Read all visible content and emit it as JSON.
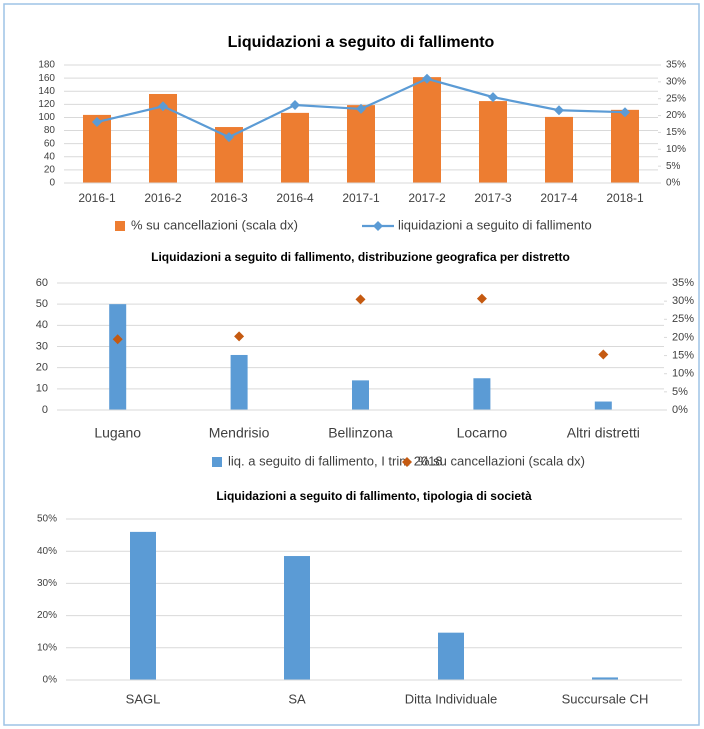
{
  "chart_data": [
    {
      "type": "combo",
      "title": "Liquidazioni a seguito di fallimento",
      "categories": [
        "2016-1",
        "2016-2",
        "2016-3",
        "2016-4",
        "2017-1",
        "2017-2",
        "2017-3",
        "2017-4",
        "2018-1"
      ],
      "series": [
        {
          "name": "% su cancellazioni (scala dx)",
          "kind": "bar",
          "axis": "y2",
          "color": "#ED7D31",
          "values": [
            20.2,
            26.4,
            16.6,
            20.8,
            23.1,
            31.4,
            24.3,
            19.6,
            21.7
          ]
        },
        {
          "name": "liquidazioni a seguito di fallimento",
          "kind": "line",
          "color": "#5B9BD5",
          "values": [
            93,
            117,
            70,
            119,
            113,
            159,
            131,
            111,
            108
          ]
        }
      ],
      "ylim": [
        0,
        180
      ],
      "yticks": [
        0,
        20,
        40,
        60,
        80,
        100,
        120,
        140,
        160,
        180
      ],
      "y2lim": [
        0,
        35
      ],
      "y2ticks": [
        {
          "value": 0,
          "label": "0%"
        },
        {
          "value": 5,
          "label": "5%"
        },
        {
          "value": 10,
          "label": "10%"
        },
        {
          "value": 15,
          "label": "15%"
        },
        {
          "value": 20,
          "label": "20%"
        },
        {
          "value": 25,
          "label": "25%"
        },
        {
          "value": 30,
          "label": "30%"
        },
        {
          "value": 35,
          "label": "35%"
        }
      ],
      "grid": true,
      "legend": "bottom"
    },
    {
      "type": "combo",
      "title": "Liquidazioni a seguito di fallimento, distribuzione geografica per distretto",
      "categories": [
        "Lugano",
        "Mendrisio",
        "Bellinzona",
        "Locarno",
        "Altri distretti"
      ],
      "series": [
        {
          "name": "liq. a seguito di fallimento, I trim 2018",
          "kind": "bar",
          "color": "#5B9BD5",
          "values": [
            50,
            26,
            14,
            15,
            4
          ]
        },
        {
          "name": "% su cancellazioni (scala dx)",
          "kind": "marker",
          "axis": "y2",
          "color": "#C55A11",
          "values": [
            19.5,
            20.3,
            30.5,
            30.7,
            15.3
          ]
        }
      ],
      "ylim": [
        0,
        60
      ],
      "yticks": [
        0,
        10,
        20,
        30,
        40,
        50,
        60
      ],
      "y2lim": [
        0,
        35
      ],
      "y2ticks": [
        {
          "value": 0,
          "label": "0%"
        },
        {
          "value": 5,
          "label": "5%"
        },
        {
          "value": 10,
          "label": "10%"
        },
        {
          "value": 15,
          "label": "15%"
        },
        {
          "value": 20,
          "label": "20%"
        },
        {
          "value": 25,
          "label": "25%"
        },
        {
          "value": 30,
          "label": "30%"
        },
        {
          "value": 35,
          "label": "35%"
        }
      ],
      "grid": true,
      "legend": "bottom"
    },
    {
      "type": "bar",
      "title": "Liquidazioni a seguito di fallimento, tipologia di società",
      "categories": [
        "SAGL",
        "SA",
        "Ditta Individuale",
        "Succursale CH"
      ],
      "series": [
        {
          "kind": "bar",
          "color": "#5B9BD5",
          "values": [
            46,
            38.5,
            14.7,
            0.8
          ]
        }
      ],
      "ylim": [
        0,
        50
      ],
      "yticks": [
        {
          "value": 0,
          "label": "0%"
        },
        {
          "value": 10,
          "label": "10%"
        },
        {
          "value": 20,
          "label": "20%"
        },
        {
          "value": 30,
          "label": "30%"
        },
        {
          "value": 40,
          "label": "40%"
        },
        {
          "value": 50,
          "label": "50%"
        }
      ],
      "grid": true
    }
  ]
}
